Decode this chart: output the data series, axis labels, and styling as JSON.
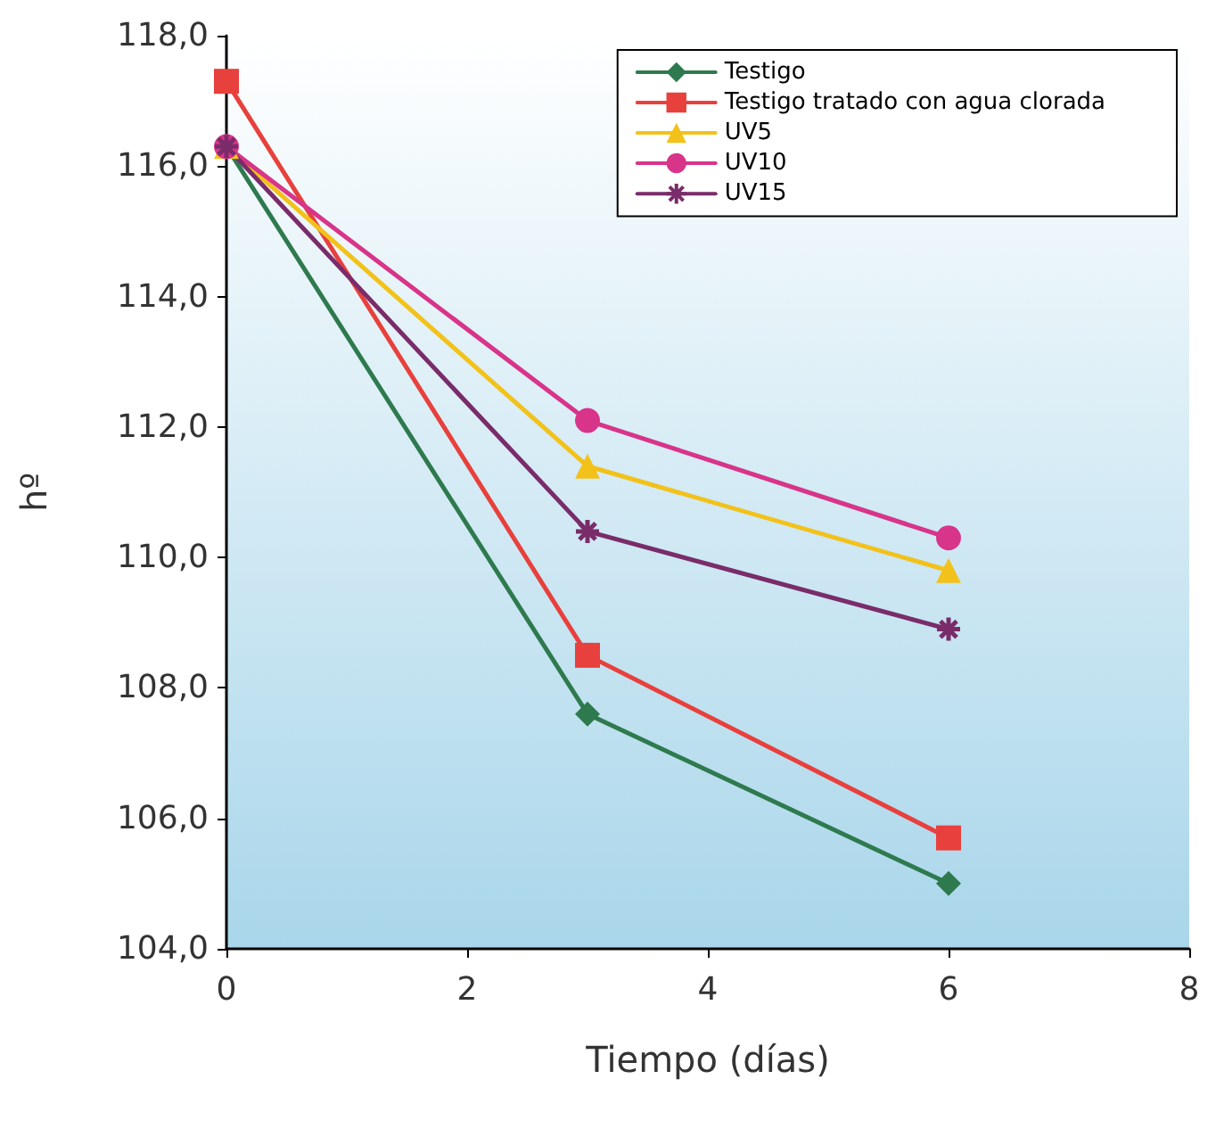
{
  "chart_data": {
    "type": "line",
    "xlabel": "Tiempo (días)",
    "ylabel": "hº",
    "x": [
      0,
      3,
      6
    ],
    "xlim": [
      0,
      8
    ],
    "xticks": [
      0,
      2,
      4,
      6,
      8
    ],
    "ylim": [
      104,
      118
    ],
    "yticks": [
      {
        "value": 104,
        "label": "104,0"
      },
      {
        "value": 106,
        "label": "106,0"
      },
      {
        "value": 108,
        "label": "108,0"
      },
      {
        "value": 110,
        "label": "110,0"
      },
      {
        "value": 112,
        "label": "112,0"
      },
      {
        "value": 114,
        "label": "114,0"
      },
      {
        "value": 116,
        "label": "116,0"
      },
      {
        "value": 118,
        "label": "118,0"
      }
    ],
    "grid": false,
    "legend": "top right",
    "line_style": "solid",
    "series": [
      {
        "name": "Testigo",
        "color": "#2e7a4e",
        "marker": "diamond",
        "values": [
          116.3,
          107.6,
          105.0
        ]
      },
      {
        "name": "Testigo tratado con agua clorada",
        "color": "#e8403c",
        "marker": "square",
        "values": [
          117.3,
          108.5,
          105.7
        ]
      },
      {
        "name": "UV5",
        "color": "#f2c21a",
        "marker": "triangle",
        "values": [
          116.3,
          111.4,
          109.8
        ]
      },
      {
        "name": "UV10",
        "color": "#d8348a",
        "marker": "circle",
        "values": [
          116.3,
          112.1,
          110.3
        ]
      },
      {
        "name": "UV15",
        "color": "#7a2c6a",
        "marker": "cross",
        "values": [
          116.3,
          110.4,
          108.9
        ]
      }
    ]
  }
}
